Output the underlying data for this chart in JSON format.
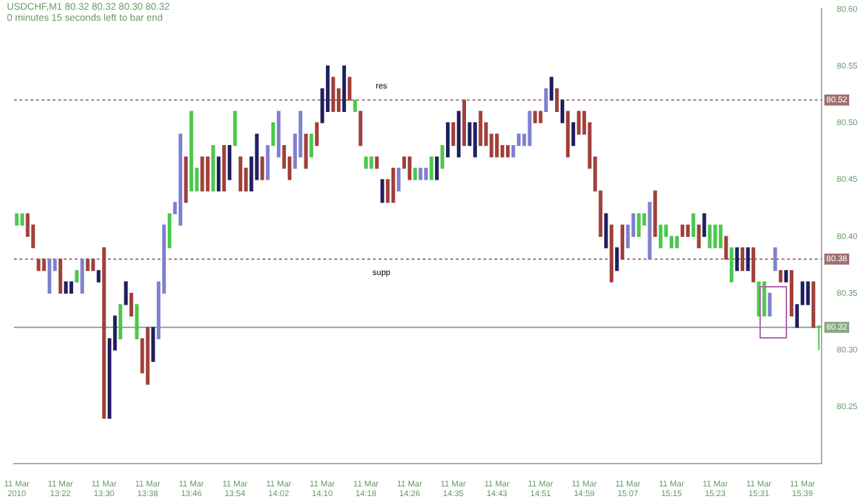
{
  "chart_data": {
    "type": "candlestick",
    "title": "USDCHF,M1  80.32 80.32 80.30 80.32",
    "subtitle": "0 minutes 15 seconds left to bar end",
    "categories": [
      "11 Mar 2010",
      null,
      null,
      null,
      null,
      null,
      null,
      null,
      "11 Mar 13:22",
      null,
      null,
      null,
      null,
      null,
      null,
      null,
      "11 Mar 13:30",
      null,
      null,
      null,
      null,
      null,
      null,
      null,
      "11 Mar 13:38",
      null,
      null,
      null,
      null,
      null,
      null,
      null,
      "11 Mar 13:46",
      null,
      null,
      null,
      null,
      null,
      null,
      null,
      "11 Mar 13:54",
      null,
      null,
      null,
      null,
      null,
      null,
      null,
      "11 Mar 14:02",
      null,
      null,
      null,
      null,
      null,
      null,
      null,
      "11 Mar 14:10",
      null,
      null,
      null,
      null,
      null,
      null,
      null,
      "11 Mar 14:18",
      null,
      null,
      null,
      null,
      null,
      null,
      null,
      "11 Mar 14:26",
      null,
      null,
      null,
      null,
      null,
      null,
      null,
      "11 Mar 14:35",
      null,
      null,
      null,
      null,
      null,
      null,
      null,
      "11 Mar 14:43",
      null,
      null,
      null,
      null,
      null,
      null,
      null,
      "11 Mar 14:51",
      null,
      null,
      null,
      null,
      null,
      null,
      null,
      "11 Mar 14:59",
      null,
      null,
      null,
      null,
      null,
      null,
      null,
      "11 Mar 15:07",
      null,
      null,
      null,
      null,
      null,
      null,
      null,
      "11 Mar 15:15",
      null,
      null,
      null,
      null,
      null,
      null,
      null,
      "11 Mar 15:23",
      null,
      null,
      null,
      null,
      null,
      null,
      null,
      "11 Mar 15:31",
      null,
      null,
      null,
      null,
      null,
      null,
      null,
      "11 Mar 15:39",
      null,
      null,
      null
    ],
    "ohlc": [
      [
        80.41,
        80.42,
        80.41,
        80.42
      ],
      [
        80.41,
        80.42,
        80.41,
        80.42
      ],
      [
        80.42,
        80.42,
        80.4,
        80.4
      ],
      [
        80.41,
        80.41,
        80.39,
        80.39
      ],
      [
        80.38,
        80.38,
        80.37,
        80.37
      ],
      [
        80.38,
        80.38,
        80.37,
        80.37
      ],
      [
        80.35,
        80.38,
        80.35,
        80.38
      ],
      [
        80.37,
        80.38,
        80.37,
        80.38
      ],
      [
        80.38,
        80.38,
        80.35,
        80.35
      ],
      [
        80.35,
        80.36,
        80.35,
        80.36
      ],
      [
        80.35,
        80.36,
        80.35,
        80.36
      ],
      [
        80.36,
        80.37,
        80.36,
        80.37
      ],
      [
        80.35,
        80.38,
        80.35,
        80.38
      ],
      [
        80.38,
        80.38,
        80.37,
        80.37
      ],
      [
        80.38,
        80.38,
        80.37,
        80.37
      ],
      [
        80.36,
        80.37,
        80.36,
        80.37
      ],
      [
        80.39,
        80.39,
        80.24,
        80.24
      ],
      [
        80.24,
        80.31,
        80.24,
        80.31
      ],
      [
        80.3,
        80.33,
        80.3,
        80.33
      ],
      [
        80.31,
        80.34,
        80.31,
        80.34
      ],
      [
        80.34,
        80.36,
        80.34,
        80.36
      ],
      [
        80.35,
        80.35,
        80.33,
        80.33
      ],
      [
        80.31,
        80.34,
        80.31,
        80.34
      ],
      [
        80.31,
        80.31,
        80.28,
        80.28
      ],
      [
        80.32,
        80.32,
        80.27,
        80.27
      ],
      [
        80.29,
        80.32,
        80.29,
        80.32
      ],
      [
        80.31,
        80.36,
        80.31,
        80.36
      ],
      [
        80.35,
        80.41,
        80.35,
        80.41
      ],
      [
        80.39,
        80.42,
        80.39,
        80.42
      ],
      [
        80.42,
        80.43,
        80.42,
        80.43
      ],
      [
        80.41,
        80.49,
        80.41,
        80.49
      ],
      [
        80.47,
        80.47,
        80.43,
        80.43
      ],
      [
        80.44,
        80.51,
        80.44,
        80.51
      ],
      [
        80.44,
        80.46,
        80.44,
        80.46
      ],
      [
        80.47,
        80.47,
        80.44,
        80.44
      ],
      [
        80.47,
        80.47,
        80.44,
        80.44
      ],
      [
        80.44,
        80.48,
        80.44,
        80.48
      ],
      [
        80.44,
        80.47,
        80.44,
        80.47
      ],
      [
        80.48,
        80.48,
        80.44,
        80.44
      ],
      [
        80.45,
        80.48,
        80.45,
        80.48
      ],
      [
        80.48,
        80.51,
        80.48,
        80.51
      ],
      [
        80.47,
        80.47,
        80.44,
        80.44
      ],
      [
        80.46,
        80.46,
        80.44,
        80.44
      ],
      [
        80.44,
        80.47,
        80.44,
        80.47
      ],
      [
        80.45,
        80.49,
        80.45,
        80.49
      ],
      [
        80.47,
        80.47,
        80.45,
        80.45
      ],
      [
        80.45,
        80.48,
        80.45,
        80.48
      ],
      [
        80.48,
        80.5,
        80.48,
        80.5
      ],
      [
        80.47,
        80.51,
        80.47,
        80.51
      ],
      [
        80.48,
        80.48,
        80.46,
        80.46
      ],
      [
        80.47,
        80.47,
        80.45,
        80.45
      ],
      [
        80.46,
        80.49,
        80.46,
        80.49
      ],
      [
        80.47,
        80.51,
        80.47,
        80.51
      ],
      [
        80.49,
        80.49,
        80.46,
        80.46
      ],
      [
        80.47,
        80.49,
        80.47,
        80.49
      ],
      [
        80.5,
        80.5,
        80.48,
        80.48
      ],
      [
        80.5,
        80.53,
        80.5,
        80.53
      ],
      [
        80.51,
        80.55,
        80.51,
        80.55
      ],
      [
        80.54,
        80.54,
        80.51,
        80.51
      ],
      [
        80.53,
        80.53,
        80.51,
        80.51
      ],
      [
        80.51,
        80.55,
        80.51,
        80.55
      ],
      [
        80.54,
        80.54,
        80.52,
        80.52
      ],
      [
        80.51,
        80.52,
        80.51,
        80.52
      ],
      [
        80.51,
        80.51,
        80.48,
        80.48
      ],
      [
        80.46,
        80.47,
        80.46,
        80.47
      ],
      [
        80.46,
        80.47,
        80.46,
        80.47
      ],
      [
        80.47,
        80.47,
        80.46,
        80.46
      ],
      [
        80.43,
        80.45,
        80.43,
        80.45
      ],
      [
        80.45,
        80.45,
        80.43,
        80.43
      ],
      [
        80.46,
        80.46,
        80.43,
        80.43
      ],
      [
        80.44,
        80.46,
        80.44,
        80.46
      ],
      [
        80.47,
        80.47,
        80.46,
        80.46
      ],
      [
        80.47,
        80.47,
        80.45,
        80.45
      ],
      [
        80.45,
        80.46,
        80.45,
        80.46
      ],
      [
        80.45,
        80.46,
        80.45,
        80.46
      ],
      [
        80.45,
        80.46,
        80.45,
        80.46
      ],
      [
        80.45,
        80.47,
        80.45,
        80.47
      ],
      [
        80.45,
        80.47,
        80.45,
        80.47
      ],
      [
        80.46,
        80.48,
        80.46,
        80.48
      ],
      [
        80.47,
        80.5,
        80.47,
        80.5
      ],
      [
        80.5,
        80.5,
        80.48,
        80.48
      ],
      [
        80.47,
        80.51,
        80.47,
        80.51
      ],
      [
        80.52,
        80.52,
        80.48,
        80.48
      ],
      [
        80.48,
        80.5,
        80.48,
        80.5
      ],
      [
        80.47,
        80.5,
        80.47,
        80.5
      ],
      [
        80.51,
        80.51,
        80.48,
        80.48
      ],
      [
        80.5,
        80.5,
        80.48,
        80.48
      ],
      [
        80.49,
        80.49,
        80.47,
        80.47
      ],
      [
        80.49,
        80.49,
        80.47,
        80.47
      ],
      [
        80.48,
        80.48,
        80.47,
        80.47
      ],
      [
        80.48,
        80.48,
        80.47,
        80.47
      ],
      [
        80.47,
        80.48,
        80.47,
        80.48
      ],
      [
        80.48,
        80.49,
        80.48,
        80.49
      ],
      [
        80.48,
        80.49,
        80.48,
        80.49
      ],
      [
        80.48,
        80.51,
        80.48,
        80.51
      ],
      [
        80.51,
        80.51,
        80.5,
        80.5
      ],
      [
        80.51,
        80.51,
        80.5,
        80.5
      ],
      [
        80.51,
        80.53,
        80.51,
        80.53
      ],
      [
        80.52,
        80.54,
        80.52,
        80.54
      ],
      [
        80.53,
        80.53,
        80.51,
        80.51
      ],
      [
        80.5,
        80.52,
        80.5,
        80.52
      ],
      [
        80.51,
        80.51,
        80.47,
        80.47
      ],
      [
        80.48,
        80.5,
        80.48,
        80.5
      ],
      [
        80.51,
        80.51,
        80.49,
        80.49
      ],
      [
        80.51,
        80.51,
        80.49,
        80.49
      ],
      [
        80.5,
        80.5,
        80.46,
        80.46
      ],
      [
        80.47,
        80.47,
        80.44,
        80.44
      ],
      [
        80.44,
        80.44,
        80.4,
        80.4
      ],
      [
        80.39,
        80.42,
        80.39,
        80.42
      ],
      [
        80.41,
        80.41,
        80.36,
        80.36
      ],
      [
        80.37,
        80.39,
        80.37,
        80.39
      ],
      [
        80.41,
        80.41,
        80.38,
        80.38
      ],
      [
        80.39,
        80.41,
        80.39,
        80.41
      ],
      [
        80.4,
        80.42,
        80.4,
        80.42
      ],
      [
        80.4,
        80.42,
        80.4,
        80.42
      ],
      [
        80.41,
        80.42,
        80.41,
        80.42
      ],
      [
        80.38,
        80.43,
        80.38,
        80.43
      ],
      [
        80.44,
        80.44,
        80.4,
        80.4
      ],
      [
        80.39,
        80.41,
        80.39,
        80.41
      ],
      [
        80.4,
        80.41,
        80.4,
        80.41
      ],
      [
        80.39,
        80.4,
        80.39,
        80.4
      ],
      [
        80.39,
        80.4,
        80.39,
        80.4
      ],
      [
        80.41,
        80.41,
        80.4,
        80.4
      ],
      [
        80.41,
        80.41,
        80.4,
        80.4
      ],
      [
        80.4,
        80.42,
        80.4,
        80.42
      ],
      [
        80.41,
        80.41,
        80.39,
        80.39
      ],
      [
        80.4,
        80.42,
        80.4,
        80.42
      ],
      [
        80.39,
        80.41,
        80.39,
        80.41
      ],
      [
        80.39,
        80.41,
        80.39,
        80.41
      ],
      [
        80.39,
        80.41,
        80.39,
        80.41
      ],
      [
        80.4,
        80.4,
        80.38,
        80.38
      ],
      [
        80.36,
        80.39,
        80.36,
        80.39
      ],
      [
        80.37,
        80.39,
        80.37,
        80.39
      ],
      [
        80.39,
        80.39,
        80.37,
        80.37
      ],
      [
        80.37,
        80.39,
        80.37,
        80.39
      ],
      [
        80.39,
        80.39,
        80.36,
        80.36
      ],
      [
        80.33,
        80.36,
        80.33,
        80.36
      ],
      [
        80.33,
        80.36,
        80.33,
        80.36
      ],
      [
        80.33,
        80.35,
        80.33,
        80.35
      ],
      [
        80.37,
        80.39,
        80.37,
        80.39
      ],
      [
        80.37,
        80.37,
        80.36,
        80.36
      ],
      [
        80.36,
        80.37,
        80.36,
        80.37
      ],
      [
        80.37,
        80.37,
        80.33,
        80.33
      ],
      [
        80.32,
        80.34,
        80.32,
        80.34
      ],
      [
        80.34,
        80.36,
        80.34,
        80.36
      ],
      [
        80.34,
        80.36,
        80.34,
        80.36
      ],
      [
        80.36,
        80.36,
        80.32,
        80.32
      ],
      [
        80.32,
        80.32,
        80.3,
        80.32
      ]
    ],
    "colors": [
      "#4cc84c",
      "#4cc84c",
      "#a0403c",
      "#a0403c",
      "#a0403c",
      "#a0403c",
      "#8080d0",
      "#8080d0",
      "#a0403c",
      "#202060",
      "#202060",
      "#4cc84c",
      "#8080d0",
      "#a0403c",
      "#a0403c",
      "#202060",
      "#a0403c",
      "#202060",
      "#202060",
      "#4cc84c",
      "#202060",
      "#a0403c",
      "#4cc84c",
      "#a0403c",
      "#a0403c",
      "#202060",
      "#8080d0",
      "#8080d0",
      "#4cc84c",
      "#8080d0",
      "#8080d0",
      "#a0403c",
      "#4cc84c",
      "#4cc84c",
      "#a0403c",
      "#a0403c",
      "#4cc84c",
      "#202060",
      "#a0403c",
      "#202060",
      "#4cc84c",
      "#a0403c",
      "#a0403c",
      "#202060",
      "#202060",
      "#a0403c",
      "#8080d0",
      "#4cc84c",
      "#8080d0",
      "#a0403c",
      "#a0403c",
      "#8080d0",
      "#8080d0",
      "#a0403c",
      "#4cc84c",
      "#a0403c",
      "#202060",
      "#202060",
      "#a0403c",
      "#a0403c",
      "#202060",
      "#a0403c",
      "#4cc84c",
      "#a0403c",
      "#4cc84c",
      "#4cc84c",
      "#a0403c",
      "#202060",
      "#a0403c",
      "#a0403c",
      "#8080d0",
      "#a0403c",
      "#a0403c",
      "#4cc84c",
      "#8080d0",
      "#8080d0",
      "#4cc84c",
      "#202060",
      "#4cc84c",
      "#202060",
      "#a0403c",
      "#202060",
      "#a0403c",
      "#202060",
      "#202060",
      "#a0403c",
      "#a0403c",
      "#a0403c",
      "#a0403c",
      "#a0403c",
      "#a0403c",
      "#8080d0",
      "#8080d0",
      "#8080d0",
      "#8080d0",
      "#a0403c",
      "#a0403c",
      "#8080d0",
      "#202060",
      "#a0403c",
      "#202060",
      "#a0403c",
      "#202060",
      "#a0403c",
      "#a0403c",
      "#a0403c",
      "#a0403c",
      "#a0403c",
      "#202060",
      "#a0403c",
      "#202060",
      "#a0403c",
      "#8080d0",
      "#8080d0",
      "#4cc84c",
      "#4cc84c",
      "#8080d0",
      "#a0403c",
      "#4cc84c",
      "#4cc84c",
      "#4cc84c",
      "#4cc84c",
      "#a0403c",
      "#a0403c",
      "#4cc84c",
      "#a0403c",
      "#202060",
      "#4cc84c",
      "#4cc84c",
      "#4cc84c",
      "#a0403c",
      "#4cc84c",
      "#202060",
      "#a0403c",
      "#202060",
      "#a0403c",
      "#4cc84c",
      "#4cc84c",
      "#8080d0",
      "#8080d0",
      "#a0403c",
      "#202060",
      "#a0403c",
      "#202060",
      "#202060",
      "#202060",
      "#a0403c",
      "#4cc84c"
    ],
    "ylim": [
      80.2,
      80.6
    ],
    "yticks": [
      {
        "value": 80.25,
        "label": "80.25"
      },
      {
        "value": 80.3,
        "label": "80.30"
      },
      {
        "value": 80.35,
        "label": "80.35"
      },
      {
        "value": 80.4,
        "label": "80.40"
      },
      {
        "value": 80.45,
        "label": "80.45"
      },
      {
        "value": 80.5,
        "label": "80.50"
      },
      {
        "value": 80.55,
        "label": "80.55"
      },
      {
        "value": 80.6,
        "label": "80.60"
      }
    ],
    "ref_lines": [
      {
        "axis": "y",
        "value": 80.52,
        "label": "80.52",
        "color": "#a07070",
        "line_style": "dotted"
      },
      {
        "axis": "y",
        "value": 80.38,
        "label": "80.38",
        "color": "#a07070",
        "line_style": "dotted"
      },
      {
        "axis": "y",
        "value": 80.32,
        "label": "80.32",
        "color": "#88a888",
        "line_style": "solid"
      }
    ],
    "annotations": [
      "res",
      "supp"
    ]
  }
}
